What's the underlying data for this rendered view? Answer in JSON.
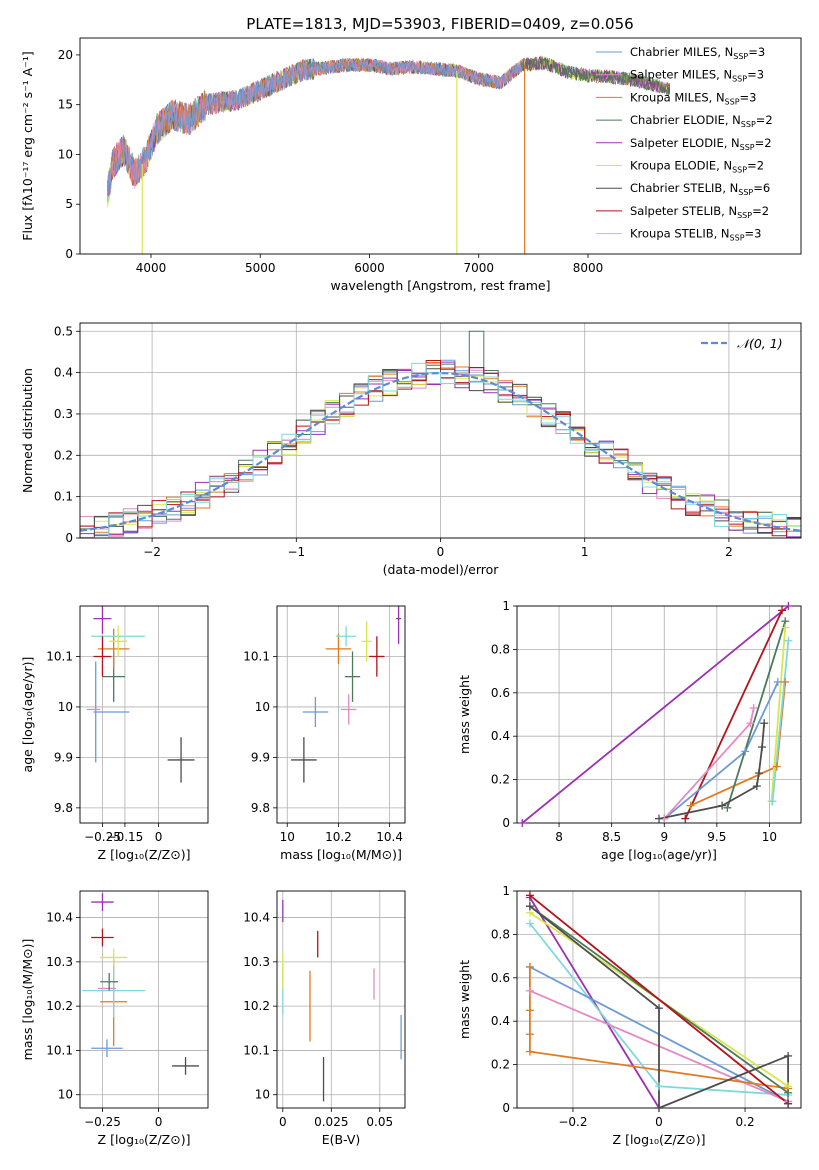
{
  "figure_title": "PLATE=1813, MJD=53903, FIBERID=0409, z=0.056",
  "colors": {
    "Chabrier MILES": "#6a9bd8",
    "Salpeter MILES": "#e58ac1",
    "Kroupa MILES": "#e07b22",
    "Chabrier ELODIE": "#4c7a5a",
    "Salpeter ELODIE": "#9b31b5",
    "Kroupa ELODIE": "#d6e84c",
    "Chabrier STELIB": "#4d4d4d",
    "Salpeter STELIB": "#b5121b",
    "Kroupa STELIB": "#7fd8dc"
  },
  "chart_data": [
    {
      "id": "spectrum",
      "type": "line",
      "xlabel": "wavelength [Angstrom, rest frame]",
      "ylabel": "Flux [fλ10⁻¹⁷ erg cm⁻² s⁻¹ A⁻¹]",
      "xlim": [
        3350,
        9950
      ],
      "ylim": [
        0,
        21.7
      ],
      "xticks": [
        4000,
        5000,
        6000,
        7000,
        8000
      ],
      "yticks": [
        0,
        5,
        10,
        15,
        20
      ],
      "legend_position": "top-right",
      "legend": [
        {
          "name": "Chabrier MILES",
          "label": "Chabrier MILES, N",
          "sub": "SSP",
          "tail": "=3"
        },
        {
          "name": "Salpeter MILES",
          "label": "Salpeter MILES, N",
          "sub": "SSP",
          "tail": "=3"
        },
        {
          "name": "Kroupa MILES",
          "label": "Kroupa MILES, N",
          "sub": "SSP",
          "tail": "=3"
        },
        {
          "name": "Chabrier ELODIE",
          "label": "Chabrier ELODIE, N",
          "sub": "SSP",
          "tail": "=2"
        },
        {
          "name": "Salpeter ELODIE",
          "label": "Salpeter ELODIE, N",
          "sub": "SSP",
          "tail": "=2"
        },
        {
          "name": "Kroupa ELODIE",
          "label": "Kroupa ELODIE, N",
          "sub": "SSP",
          "tail": "=2"
        },
        {
          "name": "Chabrier STELIB",
          "label": "Chabrier STELIB, N",
          "sub": "SSP",
          "tail": "=6"
        },
        {
          "name": "Salpeter STELIB",
          "label": "Salpeter STELIB, N",
          "sub": "SSP",
          "tail": "=2"
        },
        {
          "name": "Kroupa STELIB",
          "label": "Kroupa STELIB, N",
          "sub": "SSP",
          "tail": "=3"
        }
      ],
      "continuum": [
        [
          3600,
          6
        ],
        [
          3650,
          9
        ],
        [
          3750,
          10.5
        ],
        [
          3850,
          8
        ],
        [
          3950,
          9.5
        ],
        [
          4050,
          12.5
        ],
        [
          4200,
          14
        ],
        [
          4350,
          13.5
        ],
        [
          4500,
          15
        ],
        [
          4800,
          15.5
        ],
        [
          5000,
          16.5
        ],
        [
          5200,
          17.5
        ],
        [
          5400,
          18.5
        ],
        [
          5600,
          18.7
        ],
        [
          5800,
          19
        ],
        [
          6000,
          19
        ],
        [
          6200,
          18.6
        ],
        [
          6400,
          18.8
        ],
        [
          6600,
          18.6
        ],
        [
          6800,
          18.4
        ],
        [
          7000,
          17.6
        ],
        [
          7200,
          17.2
        ],
        [
          7400,
          19
        ],
        [
          7600,
          19.2
        ],
        [
          7800,
          18.3
        ],
        [
          8000,
          17.9
        ],
        [
          8200,
          17.8
        ],
        [
          8400,
          17.5
        ],
        [
          8600,
          17
        ],
        [
          8750,
          16.5
        ]
      ],
      "dropouts": [
        {
          "name": "Kroupa ELODIE",
          "x": 3920
        },
        {
          "name": "Kroupa ELODIE",
          "x": 6800
        },
        {
          "name": "Kroupa MILES",
          "x": 7420
        }
      ]
    },
    {
      "id": "residuals",
      "type": "line",
      "xlabel": "(data-model)/error",
      "ylabel": "Normed distribution",
      "xlim": [
        -2.5,
        2.5
      ],
      "ylim": [
        0,
        0.52
      ],
      "xticks": [
        -2,
        -1,
        0,
        1,
        2
      ],
      "yticks": [
        0,
        0.1,
        0.2,
        0.3,
        0.4,
        0.5
      ],
      "grid": true,
      "bin_width": 0.1,
      "legend_position": "top-right",
      "legend_label": "𝒩(0, 1)",
      "reference_color": "#5b8bd6",
      "peak_highlights": [
        {
          "name": "Chabrier ELODIE",
          "x": 0.25,
          "y": 0.5
        }
      ]
    },
    {
      "id": "age_vs_Z",
      "type": "scatter",
      "xlabel": "Z [log₁₀(Z/Z⊙)]",
      "ylabel": "age  [log₁₀(age/yr)]",
      "xlim": [
        -0.35,
        0.22
      ],
      "ylim": [
        9.77,
        10.2
      ],
      "xticks": [
        -0.25,
        -0.15,
        0.0
      ],
      "yticks": [
        9.8,
        9.9,
        10.0,
        10.1
      ],
      "grid": true,
      "points": [
        {
          "name": "Chabrier STELIB",
          "x": 0.1,
          "xerr": 0.06,
          "y": 9.895,
          "yerr": 0.045
        },
        {
          "name": "Chabrier MILES",
          "x": -0.28,
          "xerr": 0.0,
          "y": 9.99,
          "yerr": 0.1
        },
        {
          "name": "Chabrier MILES",
          "x": -0.21,
          "xerr": 0.08,
          "y": 9.99,
          "yerr": 0.0
        },
        {
          "name": "Salpeter MILES",
          "x": -0.29,
          "xerr": 0.03,
          "y": 9.995,
          "yerr": 0.0
        },
        {
          "name": "Chabrier ELODIE",
          "x": -0.2,
          "xerr": 0.05,
          "y": 10.06,
          "yerr": 0.05
        },
        {
          "name": "Kroupa MILES",
          "x": -0.2,
          "xerr": 0.07,
          "y": 10.115,
          "yerr": 0.04
        },
        {
          "name": "Kroupa STELIB",
          "x": -0.18,
          "xerr": 0.12,
          "y": 10.14,
          "yerr": 0.0
        },
        {
          "name": "Kroupa ELODIE",
          "x": -0.18,
          "xerr": 0.04,
          "y": 10.13,
          "yerr": 0.03
        },
        {
          "name": "Salpeter STELIB",
          "x": -0.25,
          "xerr": 0.04,
          "y": 10.1,
          "yerr": 0.04
        },
        {
          "name": "Salpeter ELODIE",
          "x": -0.25,
          "xerr": 0.04,
          "y": 10.175,
          "yerr": 0.03
        }
      ]
    },
    {
      "id": "age_vs_mass",
      "type": "scatter",
      "xlabel": "mass [log₁₀(M/M⊙)]",
      "ylabel": "",
      "xlim": [
        9.96,
        10.46
      ],
      "ylim": [
        9.77,
        10.2
      ],
      "xticks": [
        10.0,
        10.2,
        10.4
      ],
      "yticks": [
        9.8,
        9.9,
        10.0,
        10.1
      ],
      "grid": true,
      "points": [
        {
          "name": "Chabrier STELIB",
          "x": 10.065,
          "xerr": 0.05,
          "y": 9.895,
          "yerr": 0.045
        },
        {
          "name": "Chabrier MILES",
          "x": 10.11,
          "xerr": 0.05,
          "y": 9.99,
          "yerr": 0.03
        },
        {
          "name": "Salpeter MILES",
          "x": 10.24,
          "xerr": 0.03,
          "y": 9.995,
          "yerr": 0.03
        },
        {
          "name": "Chabrier ELODIE",
          "x": 10.255,
          "xerr": 0.03,
          "y": 10.06,
          "yerr": 0.05
        },
        {
          "name": "Kroupa MILES",
          "x": 10.2,
          "xerr": 0.05,
          "y": 10.115,
          "yerr": 0.03
        },
        {
          "name": "Kroupa STELIB",
          "x": 10.23,
          "xerr": 0.04,
          "y": 10.14,
          "yerr": 0.02
        },
        {
          "name": "Kroupa ELODIE",
          "x": 10.31,
          "xerr": 0.02,
          "y": 10.13,
          "yerr": 0.04
        },
        {
          "name": "Salpeter STELIB",
          "x": 10.35,
          "xerr": 0.03,
          "y": 10.1,
          "yerr": 0.04
        },
        {
          "name": "Salpeter ELODIE",
          "x": 10.435,
          "xerr": 0.01,
          "y": 10.175,
          "yerr": 0.05
        }
      ]
    },
    {
      "id": "mass_weight_vs_age",
      "type": "line",
      "xlabel": "age  [log₁₀(age/yr)]",
      "ylabel": "mass weight",
      "xlim": [
        7.6,
        10.3
      ],
      "ylim": [
        0,
        1
      ],
      "xticks": [
        8.0,
        8.5,
        9.0,
        9.5,
        10.0
      ],
      "yticks": [
        0,
        0.2,
        0.4,
        0.6,
        0.8,
        1.0
      ],
      "grid": true,
      "series": [
        {
          "name": "Salpeter ELODIE",
          "x": [
            7.65,
            10.18
          ],
          "y": [
            0,
            1
          ]
        },
        {
          "name": "Salpeter STELIB",
          "x": [
            9.2,
            10.12
          ],
          "y": [
            0.02,
            0.98
          ]
        },
        {
          "name": "Kroupa MILES",
          "x": [
            9.25,
            10.07,
            10.15
          ],
          "y": [
            0.08,
            0.26,
            0.65
          ]
        },
        {
          "name": "Chabrier MILES",
          "x": [
            9.0,
            9.77,
            10.08
          ],
          "y": [
            0.02,
            0.33,
            0.65
          ]
        },
        {
          "name": "Salpeter MILES",
          "x": [
            9.0,
            9.82,
            9.85
          ],
          "y": [
            0.02,
            0.46,
            0.53
          ]
        },
        {
          "name": "Chabrier ELODIE",
          "x": [
            9.6,
            10.15
          ],
          "y": [
            0.07,
            0.93
          ]
        },
        {
          "name": "Kroupa ELODIE",
          "x": [
            10.02,
            10.15
          ],
          "y": [
            0.1,
            0.9
          ]
        },
        {
          "name": "Kroupa STELIB",
          "x": [
            10.03,
            10.18
          ],
          "y": [
            0.1,
            0.84
          ]
        },
        {
          "name": "Chabrier STELIB",
          "x": [
            8.95,
            9.55,
            9.88,
            9.9,
            9.93,
            9.95
          ],
          "y": [
            0.02,
            0.08,
            0.17,
            0.23,
            0.35,
            0.46
          ]
        }
      ]
    },
    {
      "id": "mass_vs_Z",
      "type": "scatter",
      "xlabel": "Z [log₁₀(Z/Z⊙)]",
      "ylabel": "mass [log₁₀(M/M⊙)]",
      "xlim": [
        -0.35,
        0.22
      ],
      "ylim": [
        9.97,
        10.46
      ],
      "xticks": [
        -0.25,
        0.0
      ],
      "yticks": [
        10.0,
        10.1,
        10.2,
        10.3,
        10.4
      ],
      "grid": true,
      "points": [
        {
          "name": "Chabrier STELIB",
          "x": 0.12,
          "xerr": 0.06,
          "y": 10.065,
          "yerr": 0.02
        },
        {
          "name": "Chabrier MILES",
          "x": -0.23,
          "xerr": 0.07,
          "y": 10.105,
          "yerr": 0.02
        },
        {
          "name": "Kroupa MILES",
          "x": -0.2,
          "xerr": 0.06,
          "y": 10.21,
          "yerr": 0.1
        },
        {
          "name": "Kroupa STELIB",
          "x": -0.2,
          "xerr": 0.14,
          "y": 10.235,
          "yerr": 0.06
        },
        {
          "name": "Salpeter MILES",
          "x": -0.23,
          "xerr": 0.04,
          "y": 10.24,
          "yerr": 0.0
        },
        {
          "name": "Chabrier ELODIE",
          "x": -0.22,
          "xerr": 0.04,
          "y": 10.255,
          "yerr": 0.02
        },
        {
          "name": "Kroupa ELODIE",
          "x": -0.2,
          "xerr": 0.06,
          "y": 10.31,
          "yerr": 0.02
        },
        {
          "name": "Salpeter STELIB",
          "x": -0.25,
          "xerr": 0.05,
          "y": 10.355,
          "yerr": 0.02
        },
        {
          "name": "Salpeter ELODIE",
          "x": -0.25,
          "xerr": 0.05,
          "y": 10.435,
          "yerr": 0.02
        }
      ]
    },
    {
      "id": "mass_vs_EBV",
      "type": "scatter",
      "xlabel": "E(B-V)",
      "ylabel": "",
      "xlim": [
        -0.003,
        0.063
      ],
      "ylim": [
        9.97,
        10.46
      ],
      "xticks": [
        0.0,
        0.025,
        0.05
      ],
      "yticks": [
        10.0,
        10.1,
        10.2,
        10.3,
        10.4
      ],
      "grid": true,
      "points": [
        {
          "name": "Chabrier STELIB",
          "x": 0.021,
          "xerr": 0,
          "y": 10.035,
          "yerr": 0.05
        },
        {
          "name": "Chabrier MILES",
          "x": 0.061,
          "xerr": 0,
          "y": 10.13,
          "yerr": 0.05
        },
        {
          "name": "Kroupa MILES",
          "x": 0.014,
          "xerr": 0,
          "y": 10.2,
          "yerr": 0.08
        },
        {
          "name": "Salpeter MILES",
          "x": 0.047,
          "xerr": 0,
          "y": 10.25,
          "yerr": 0.035
        },
        {
          "name": "Kroupa STELIB",
          "x": 0.0,
          "xerr": 0,
          "y": 10.24,
          "yerr": 0.06
        },
        {
          "name": "Kroupa ELODIE",
          "x": 0.0,
          "xerr": 0,
          "y": 10.28,
          "yerr": 0.04
        },
        {
          "name": "Salpeter STELIB",
          "x": 0.018,
          "xerr": 0,
          "y": 10.34,
          "yerr": 0.03
        },
        {
          "name": "Salpeter ELODIE",
          "x": 0.0,
          "xerr": 0,
          "y": 10.415,
          "yerr": 0.025
        }
      ]
    },
    {
      "id": "mass_weight_vs_Z",
      "type": "line",
      "xlabel": "Z [log₁₀(Z/Z⊙)]",
      "ylabel": "mass weight",
      "xlim": [
        -0.33,
        0.33
      ],
      "ylim": [
        0,
        1
      ],
      "xticks": [
        -0.2,
        0.0,
        0.2
      ],
      "yticks": [
        0,
        0.2,
        0.4,
        0.6,
        0.8,
        1.0
      ],
      "grid": true,
      "series": [
        {
          "name": "Salpeter ELODIE",
          "x": [
            -0.3,
            0.0
          ],
          "y": [
            0.97,
            0
          ]
        },
        {
          "name": "Kroupa STELIB",
          "x": [
            -0.3,
            0.0,
            0.3
          ],
          "y": [
            0.85,
            0.1,
            0.06
          ]
        },
        {
          "name": "Chabrier MILES",
          "x": [
            -0.3,
            0.3
          ],
          "y": [
            0.65,
            0.03
          ]
        },
        {
          "name": "Salpeter MILES",
          "x": [
            -0.3,
            0.3
          ],
          "y": [
            0.54,
            0.03
          ]
        },
        {
          "name": "Kroupa MILES",
          "x": [
            -0.3,
            -0.3,
            -0.3,
            -0.3,
            0.3
          ],
          "y": [
            0.65,
            0.45,
            0.34,
            0.26,
            0.09
          ]
        },
        {
          "name": "Kroupa ELODIE",
          "x": [
            -0.3,
            0.3
          ],
          "y": [
            0.9,
            0.1
          ]
        },
        {
          "name": "Chabrier ELODIE",
          "x": [
            -0.3,
            0.3
          ],
          "y": [
            0.93,
            0.07
          ]
        },
        {
          "name": "Salpeter STELIB",
          "x": [
            -0.3,
            0.3
          ],
          "y": [
            0.98,
            0.02
          ]
        },
        {
          "name": "Chabrier STELIB",
          "x": [
            -0.3,
            0.0,
            0.0,
            0.3,
            0.3
          ],
          "y": [
            0.93,
            0.46,
            0.0,
            0.24,
            0.02
          ]
        }
      ]
    }
  ]
}
